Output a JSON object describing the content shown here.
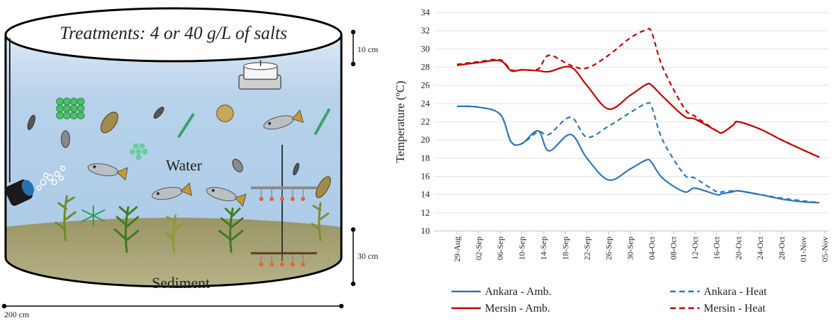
{
  "diagram": {
    "title": "Treatments: 4 or 40 g/L of salts",
    "water_label": "Water",
    "sediment_label": "Sediment",
    "dim_top": "10 cm",
    "dim_side": "30 cm",
    "dim_bottom": "200 cm"
  },
  "chart_data": {
    "type": "line",
    "title": "",
    "xlabel": "",
    "ylabel": "Temperature (ºC)",
    "ylim": [
      10,
      34
    ],
    "yticks": [
      10,
      12,
      14,
      16,
      18,
      20,
      22,
      24,
      26,
      28,
      30,
      32,
      34
    ],
    "xtick_labels": [
      "29-Aug",
      "02-Sep",
      "06-Sep",
      "10-Sep",
      "14-Sep",
      "18-Sep",
      "22-Sep",
      "26-Sep",
      "30-Sep",
      "04-Oct",
      "08-Oct",
      "12-Oct",
      "16-Oct",
      "20-Oct",
      "24-Oct",
      "28-Oct",
      "01-Nov",
      "05-Nov"
    ],
    "x": [
      "29-Aug",
      "02-Sep",
      "06-Sep",
      "08-Sep",
      "10-Sep",
      "13-Sep",
      "15-Sep",
      "19-Sep",
      "22-Sep",
      "26-Sep",
      "30-Sep",
      "03-Oct",
      "04-Oct",
      "06-Oct",
      "10-Oct",
      "12-Oct",
      "16-Oct",
      "17-Oct",
      "19-Oct",
      "20-Oct",
      "24-Oct",
      "28-Oct",
      "01-Nov",
      "04-Nov"
    ],
    "series": [
      {
        "name": "Ankara - Amb.",
        "color": "#2e75b6",
        "dash": false,
        "values": [
          23.7,
          23.6,
          22.8,
          19.8,
          19.6,
          21.0,
          18.8,
          20.6,
          18.0,
          15.6,
          16.8,
          17.8,
          17.5,
          15.8,
          14.3,
          14.7,
          14.0,
          14.1,
          14.3,
          14.4,
          14.0,
          13.5,
          13.2,
          13.1
        ]
      },
      {
        "name": "Ankara - Heat",
        "color": "#2e75b6",
        "dash": true,
        "values": [
          23.7,
          23.6,
          22.8,
          19.8,
          19.6,
          20.9,
          20.6,
          22.5,
          20.3,
          21.5,
          23.0,
          24.0,
          23.6,
          20.0,
          16.2,
          15.8,
          14.3,
          14.3,
          14.4,
          14.4,
          14.0,
          13.6,
          13.3,
          13.1
        ]
      },
      {
        "name": "Mersin - Amb.",
        "color": "#c00000",
        "dash": false,
        "values": [
          28.2,
          28.5,
          28.7,
          27.6,
          27.7,
          27.6,
          27.5,
          28.0,
          26.0,
          23.4,
          24.9,
          26.1,
          26.0,
          24.8,
          22.6,
          22.3,
          21.0,
          20.8,
          21.6,
          22.0,
          21.2,
          20.0,
          18.9,
          18.1
        ]
      },
      {
        "name": "Mersin - Heat",
        "color": "#c00000",
        "dash": true,
        "values": [
          28.3,
          28.6,
          28.8,
          27.7,
          27.7,
          27.8,
          29.3,
          28.2,
          27.9,
          29.3,
          31.2,
          32.1,
          31.8,
          28.0,
          23.5,
          22.6,
          21.0,
          20.8,
          21.6,
          22.0,
          21.2,
          20.0,
          18.9,
          18.1
        ]
      }
    ],
    "legend": "bottom"
  }
}
